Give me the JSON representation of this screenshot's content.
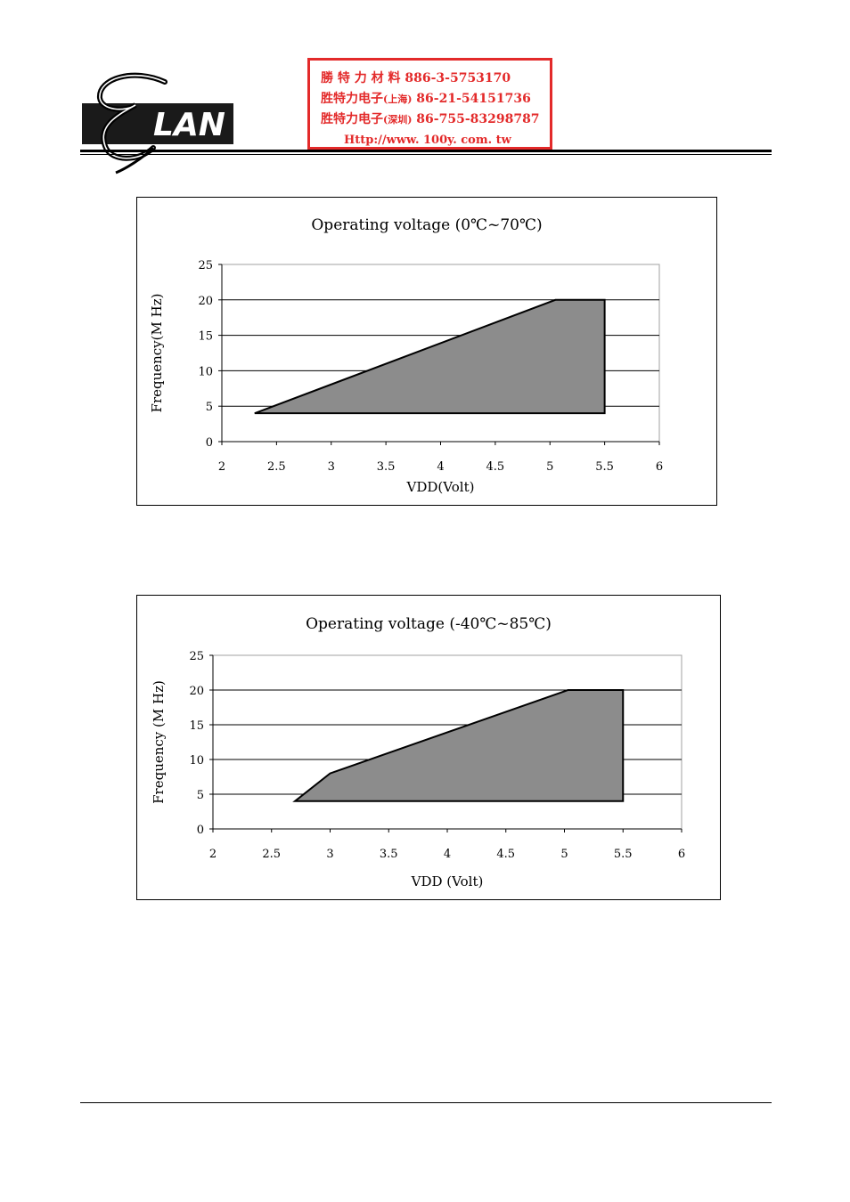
{
  "stamp": {
    "line1": "勝 特 力 材 料 886-3-5753170",
    "line2_main": "胜特力电子",
    "line2_city": "(上海)",
    "line2_phone": " 86-21-54151736",
    "line3_main": "胜特力电子",
    "line3_city": "(深圳)",
    "line3_phone": " 86-755-83298787",
    "line4": "Http://www. 100y. com. tw"
  },
  "logo": {
    "text": "LAN",
    "icon": "elan-logo"
  },
  "colors": {
    "area_fill": "#8c8c8c",
    "stamp_red": "#e32a2a",
    "grid": "#000000",
    "plot_border": "#a0a0a0"
  },
  "chart_data": [
    {
      "type": "area",
      "title": "Operating voltage (0℃~70℃)",
      "xlabel": "VDD(Volt)",
      "ylabel": "Frequency(M Hz)",
      "xlim": [
        2,
        6
      ],
      "ylim": [
        0,
        25
      ],
      "x_ticks": [
        "2",
        "2.5",
        "3",
        "3.5",
        "4",
        "4.5",
        "5",
        "5.5",
        "6"
      ],
      "y_ticks": [
        "0",
        "5",
        "10",
        "15",
        "20",
        "25"
      ],
      "grid": "horizontal",
      "polygon": [
        [
          2.3,
          4
        ],
        [
          5.05,
          20
        ],
        [
          5.5,
          20
        ],
        [
          5.5,
          4
        ]
      ]
    },
    {
      "type": "area",
      "title": "Operating voltage (-40℃~85℃)",
      "xlabel": "VDD (Volt)",
      "ylabel": "Frequency (M Hz)",
      "xlim": [
        2,
        6
      ],
      "ylim": [
        0,
        25
      ],
      "x_ticks": [
        "2",
        "2.5",
        "3",
        "3.5",
        "4",
        "4.5",
        "5",
        "5.5",
        "6"
      ],
      "y_ticks": [
        "0",
        "5",
        "10",
        "15",
        "20",
        "25"
      ],
      "grid": "horizontal",
      "polygon": [
        [
          2.7,
          4
        ],
        [
          3.0,
          8
        ],
        [
          5.03,
          20
        ],
        [
          5.5,
          20
        ],
        [
          5.5,
          4
        ]
      ]
    }
  ]
}
